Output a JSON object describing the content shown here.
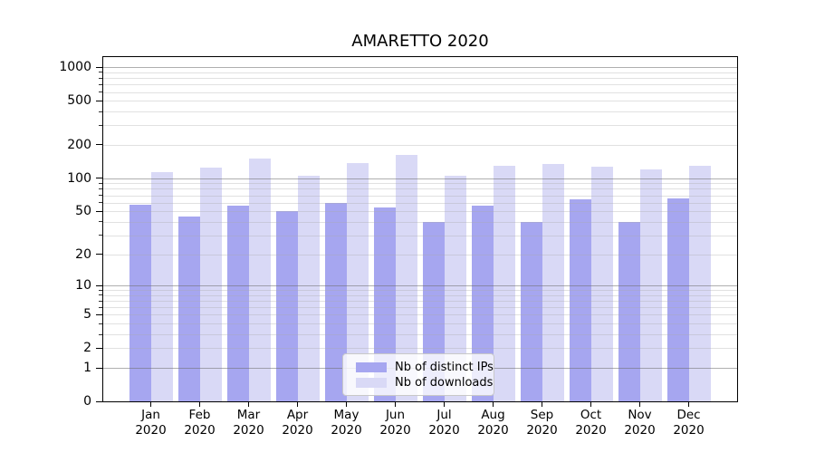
{
  "figure": {
    "background": "#ffffff"
  },
  "chart_data": {
    "type": "bar",
    "title": "AMARETTO 2020",
    "categories": [
      "Jan",
      "Feb",
      "Mar",
      "Apr",
      "May",
      "Jun",
      "Jul",
      "Aug",
      "Sep",
      "Oct",
      "Nov",
      "Dec"
    ],
    "category_year_line": "2020",
    "series": [
      {
        "name": "Nb of distinct IPs",
        "color": "#a6a6f0",
        "values": [
          57,
          45,
          56,
          50,
          59,
          54,
          40,
          56,
          40,
          64,
          40,
          65
        ]
      },
      {
        "name": "Nb of downloads",
        "color": "#d9d9f6",
        "values": [
          114,
          125,
          151,
          106,
          138,
          164,
          106,
          129,
          134,
          127,
          121,
          130
        ]
      }
    ],
    "xlabel": "",
    "ylabel": "",
    "y_scale": "log10(1+v)",
    "ylim": [
      0,
      1236
    ],
    "y_ticks_labeled": [
      0,
      1,
      2,
      5,
      10,
      20,
      50,
      100,
      200,
      500,
      1000
    ],
    "y_minor_ticks": [
      3,
      4,
      6,
      7,
      8,
      9,
      30,
      40,
      60,
      70,
      80,
      90,
      300,
      400,
      600,
      700,
      800,
      900
    ],
    "y_major_gridlines": [
      1,
      10,
      100,
      1000
    ],
    "y_minor_gridlines": [
      2,
      3,
      4,
      5,
      6,
      7,
      8,
      9,
      20,
      30,
      40,
      50,
      60,
      70,
      80,
      90,
      200,
      300,
      400,
      500,
      600,
      700,
      800,
      900
    ],
    "grid": true,
    "legend_position": "lower center"
  },
  "legend": {
    "entries": [
      {
        "label": "Nb of distinct IPs",
        "color": "#a6a6f0"
      },
      {
        "label": "Nb of downloads",
        "color": "#d9d9f6"
      }
    ]
  }
}
